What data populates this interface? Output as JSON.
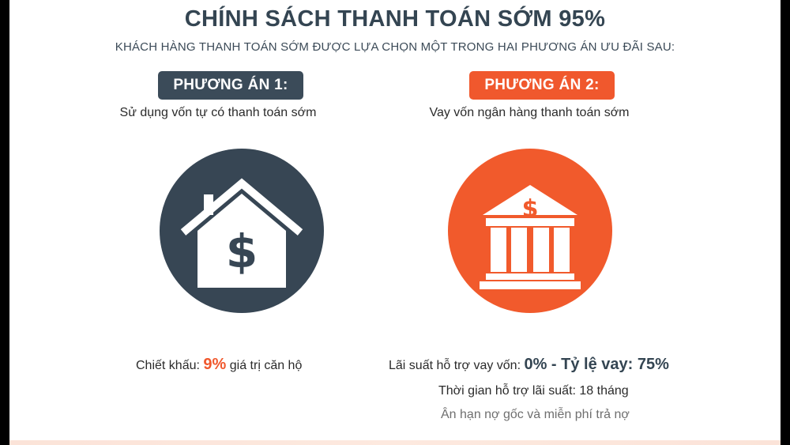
{
  "title": "CHÍNH SÁCH THANH TOÁN SỚM 95%",
  "subtitle": "KHÁCH HÀNG THANH TOÁN SỚM ĐƯỢC LỰA CHỌN MỘT TRONG HAI PHƯƠNG ÁN ƯU ĐÃI SAU:",
  "colors": {
    "dark": "#374654",
    "orange": "#f15a2c"
  },
  "option1": {
    "badge": "PHƯƠNG ÁN 1:",
    "description": "Sử dụng vốn tự có thanh toán sớm",
    "icon": "house-dollar-icon",
    "discount_prefix": "Chiết khấu: ",
    "discount_value": "9%",
    "discount_suffix": " giá trị căn hộ"
  },
  "option2": {
    "badge": "PHƯƠNG ÁN 2:",
    "description": "Vay vốn ngân hàng thanh toán sớm",
    "icon": "bank-dollar-icon",
    "rate_prefix": "Lãi suất hỗ trợ vay vốn: ",
    "rate_value": "0% - Tỷ lệ vay: 75%",
    "support_time": "Thời gian hỗ trợ lãi suất: 18 tháng",
    "grace": "Ân hạn nợ gốc và miễn phí trả nợ"
  }
}
